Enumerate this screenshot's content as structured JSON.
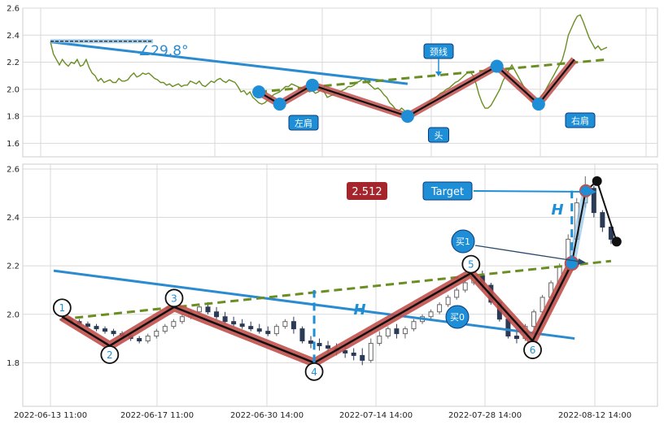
{
  "chart_data": [
    {
      "type": "line",
      "panel": "top",
      "title": "",
      "y_ticks": [
        "1.6",
        "1.8",
        "2.0",
        "2.2",
        "2.4",
        "2.6"
      ],
      "ylim": [
        1.5,
        2.6
      ],
      "grid": true,
      "series": [
        {
          "color": "#6b8e23",
          "x": [
            0,
            1,
            2,
            3,
            4,
            5,
            6,
            7,
            8,
            9,
            10,
            11,
            12,
            13,
            14,
            15,
            16,
            17,
            18,
            19,
            20,
            21,
            22,
            23,
            24,
            25,
            26,
            27,
            28,
            29,
            30,
            31,
            32,
            33,
            34,
            35,
            36,
            37,
            38,
            39,
            40,
            41,
            42,
            43,
            44,
            45,
            46,
            47,
            48,
            49,
            50,
            51,
            52,
            53,
            54,
            55,
            56,
            57,
            58,
            59,
            60,
            61,
            62,
            63,
            64,
            65,
            66,
            67,
            68,
            69,
            70,
            71,
            72,
            73,
            74,
            75,
            76,
            77,
            78,
            79,
            80,
            81,
            82,
            83,
            84,
            85,
            86,
            87,
            88,
            89,
            90,
            91,
            92,
            93,
            94,
            95,
            96,
            97,
            98,
            99,
            100,
            101,
            102,
            103,
            104,
            105,
            106,
            107,
            108,
            109,
            110,
            111,
            112,
            113,
            114,
            115,
            116,
            117,
            118,
            119,
            120,
            121,
            122,
            123,
            124,
            125,
            126,
            127,
            128,
            129,
            130,
            131,
            132,
            133,
            134,
            135,
            136,
            137,
            138,
            139,
            140,
            141,
            142,
            143,
            144,
            145,
            146,
            147,
            148,
            149,
            150,
            151,
            152,
            153,
            154,
            155,
            156,
            157,
            158,
            159,
            160,
            161,
            162,
            163,
            164,
            165,
            166,
            167,
            168,
            169,
            170,
            171,
            172,
            173,
            174,
            175,
            176,
            177,
            178,
            179,
            180,
            181,
            182,
            183,
            184,
            185,
            186,
            187
          ],
          "y": [
            2.35,
            2.26,
            2.22,
            2.18,
            2.22,
            2.19,
            2.17,
            2.2,
            2.19,
            2.22,
            2.17,
            2.18,
            2.22,
            2.16,
            2.12,
            2.1,
            2.06,
            2.08,
            2.05,
            2.06,
            2.07,
            2.05,
            2.05,
            2.08,
            2.06,
            2.06,
            2.07,
            2.1,
            2.12,
            2.09,
            2.1,
            2.12,
            2.11,
            2.12,
            2.1,
            2.08,
            2.07,
            2.05,
            2.05,
            2.03,
            2.04,
            2.02,
            2.03,
            2.04,
            2.02,
            2.03,
            2.03,
            2.06,
            2.05,
            2.04,
            2.06,
            2.03,
            2.02,
            2.04,
            2.06,
            2.05,
            2.07,
            2.08,
            2.06,
            2.05,
            2.07,
            2.06,
            2.05,
            2.02,
            1.98,
            1.99,
            1.96,
            1.98,
            1.94,
            1.92,
            1.9,
            1.89,
            1.9,
            1.92,
            1.94,
            1.96,
            1.97,
            1.98,
            2.0,
            2.02,
            2.02,
            2.04,
            2.03,
            2.02,
            2.01,
            1.99,
            2.0,
            1.98,
            1.99,
            1.97,
            1.98,
            2.0,
            1.98,
            1.94,
            1.95,
            1.96,
            1.97,
            1.98,
            1.99,
            2.0,
            2.02,
            2.02,
            2.03,
            2.05,
            2.06,
            2.08,
            2.06,
            2.04,
            2.02,
            2.0,
            2.01,
            1.99,
            1.96,
            1.94,
            1.9,
            1.88,
            1.85,
            1.84,
            1.86,
            1.84,
            1.82,
            1.8,
            1.81,
            1.83,
            1.85,
            1.86,
            1.88,
            1.9,
            1.92,
            1.93,
            1.95,
            1.97,
            1.98,
            2.0,
            2.01,
            2.03,
            2.05,
            2.06,
            2.08,
            2.1,
            2.12,
            2.13,
            2.1,
            2.04,
            1.96,
            1.9,
            1.86,
            1.86,
            1.88,
            1.92,
            1.96,
            2.0,
            2.06,
            2.1,
            2.14,
            2.18,
            2.14,
            2.1,
            2.06,
            2.02,
            1.98,
            1.94,
            1.9,
            1.89,
            1.92,
            1.95,
            1.98,
            2.02,
            2.06,
            2.1,
            2.14,
            2.18,
            2.22,
            2.3,
            2.4,
            2.45,
            2.5,
            2.54,
            2.55,
            2.5,
            2.44,
            2.38,
            2.34,
            2.3,
            2.32,
            2.29,
            2.3,
            2.31
          ]
        }
      ],
      "pattern_points": [
        {
          "x": 70,
          "y": 1.98
        },
        {
          "x": 77,
          "y": 1.89
        },
        {
          "x": 88,
          "y": 2.03
        },
        {
          "x": 120,
          "y": 1.8
        },
        {
          "x": 150,
          "y": 2.17
        },
        {
          "x": 164,
          "y": 1.89
        }
      ],
      "neckline": {
        "x": [
          70,
          187
        ],
        "y": [
          1.98,
          2.22
        ]
      },
      "trendline": {
        "x": [
          0,
          120
        ],
        "y": [
          2.35,
          2.04
        ]
      },
      "angle_label": "∠29.8°",
      "labels": {
        "left_shoulder": "左肩",
        "head": "头",
        "right_shoulder": "右肩",
        "neckline_tag": "颈线"
      }
    },
    {
      "type": "candlestick",
      "panel": "bottom",
      "title": "",
      "x_tick_labels": [
        "2022-06-13 11:00",
        "2022-06-17 11:00",
        "2022-06-30 14:00",
        "2022-07-14 14:00",
        "2022-07-28 14:00",
        "2022-08-12 14:00"
      ],
      "y_ticks": [
        "1.8",
        "2.0",
        "2.2",
        "2.4",
        "2.6"
      ],
      "ylim": [
        1.62,
        2.62
      ],
      "grid": true,
      "zigzag_points": [
        {
          "label": "1",
          "x": 3,
          "y": 1.99
        },
        {
          "label": "2",
          "x": 20,
          "y": 1.87
        },
        {
          "label": "3",
          "x": 43,
          "y": 2.03
        },
        {
          "label": "4",
          "x": 93,
          "y": 1.8
        },
        {
          "label": "5",
          "x": 149,
          "y": 2.17
        },
        {
          "label": "6",
          "x": 171,
          "y": 1.89
        }
      ],
      "projection_line": {
        "x": [
          185,
          190,
          194,
          201
        ],
        "y": [
          2.21,
          2.51,
          2.55,
          2.3
        ]
      },
      "neckline": {
        "x": [
          3,
          199
        ],
        "y": [
          1.98,
          2.22
        ]
      },
      "trendline": {
        "x": [
          0,
          186
        ],
        "y": [
          2.18,
          1.9
        ]
      },
      "h_label": "H",
      "price_box": "2.512",
      "target_label": "Target",
      "buy0_label": "买0",
      "buy1_label": "买1",
      "candles": [
        [
          1.98,
          1.99,
          1.97,
          1.98
        ],
        [
          1.98,
          1.99,
          1.96,
          1.97
        ],
        [
          1.97,
          1.98,
          1.95,
          1.96
        ],
        [
          1.96,
          1.97,
          1.94,
          1.95
        ],
        [
          1.95,
          1.96,
          1.93,
          1.94
        ],
        [
          1.94,
          1.95,
          1.92,
          1.93
        ],
        [
          1.93,
          1.94,
          1.91,
          1.92
        ],
        [
          1.92,
          1.93,
          1.9,
          1.91
        ],
        [
          1.91,
          1.92,
          1.89,
          1.9
        ],
        [
          1.9,
          1.91,
          1.88,
          1.89
        ],
        [
          1.89,
          1.92,
          1.88,
          1.91
        ],
        [
          1.91,
          1.94,
          1.9,
          1.93
        ],
        [
          1.93,
          1.96,
          1.92,
          1.95
        ],
        [
          1.95,
          1.98,
          1.94,
          1.97
        ],
        [
          1.97,
          2.0,
          1.96,
          1.99
        ],
        [
          1.99,
          2.02,
          1.98,
          2.01
        ],
        [
          2.01,
          2.04,
          2.0,
          2.03
        ],
        [
          2.03,
          2.05,
          2.0,
          2.01
        ],
        [
          2.01,
          2.03,
          1.98,
          1.99
        ],
        [
          1.99,
          2.01,
          1.96,
          1.97
        ],
        [
          1.97,
          1.99,
          1.95,
          1.96
        ],
        [
          1.96,
          1.98,
          1.94,
          1.95
        ],
        [
          1.95,
          1.97,
          1.93,
          1.94
        ],
        [
          1.94,
          1.96,
          1.92,
          1.93
        ],
        [
          1.93,
          1.95,
          1.91,
          1.92
        ],
        [
          1.92,
          1.96,
          1.91,
          1.95
        ],
        [
          1.95,
          1.98,
          1.94,
          1.97
        ],
        [
          1.97,
          1.99,
          1.92,
          1.94
        ],
        [
          1.94,
          1.95,
          1.88,
          1.89
        ],
        [
          1.89,
          1.91,
          1.86,
          1.88
        ],
        [
          1.88,
          1.9,
          1.85,
          1.87
        ],
        [
          1.87,
          1.89,
          1.84,
          1.86
        ],
        [
          1.86,
          1.88,
          1.83,
          1.85
        ],
        [
          1.85,
          1.87,
          1.82,
          1.84
        ],
        [
          1.84,
          1.86,
          1.81,
          1.83
        ],
        [
          1.83,
          1.86,
          1.79,
          1.81
        ],
        [
          1.81,
          1.9,
          1.8,
          1.88
        ],
        [
          1.88,
          1.93,
          1.87,
          1.91
        ],
        [
          1.91,
          1.95,
          1.9,
          1.94
        ],
        [
          1.94,
          1.96,
          1.9,
          1.92
        ],
        [
          1.92,
          1.95,
          1.9,
          1.94
        ],
        [
          1.94,
          1.98,
          1.93,
          1.97
        ],
        [
          1.97,
          2.0,
          1.96,
          1.99
        ],
        [
          1.99,
          2.02,
          1.98,
          2.01
        ],
        [
          2.01,
          2.05,
          2.0,
          2.04
        ],
        [
          2.04,
          2.08,
          2.03,
          2.07
        ],
        [
          2.07,
          2.11,
          2.06,
          2.1
        ],
        [
          2.1,
          2.14,
          2.09,
          2.13
        ],
        [
          2.13,
          2.17,
          2.12,
          2.16
        ],
        [
          2.16,
          2.18,
          2.1,
          2.12
        ],
        [
          2.12,
          2.13,
          2.04,
          2.05
        ],
        [
          2.05,
          2.06,
          1.97,
          1.98
        ],
        [
          1.98,
          1.99,
          1.9,
          1.91
        ],
        [
          1.91,
          1.94,
          1.88,
          1.9
        ],
        [
          1.9,
          1.96,
          1.89,
          1.95
        ],
        [
          1.95,
          2.02,
          1.94,
          2.01
        ],
        [
          2.01,
          2.08,
          2.0,
          2.07
        ],
        [
          2.07,
          2.14,
          2.06,
          2.13
        ],
        [
          2.13,
          2.21,
          2.12,
          2.2
        ],
        [
          2.2,
          2.33,
          2.19,
          2.31
        ],
        [
          2.31,
          2.48,
          2.3,
          2.46
        ],
        [
          2.46,
          2.57,
          2.44,
          2.52
        ],
        [
          2.52,
          2.53,
          2.4,
          2.42
        ],
        [
          2.42,
          2.43,
          2.34,
          2.36
        ],
        [
          2.36,
          2.37,
          2.29,
          2.31
        ]
      ]
    }
  ]
}
